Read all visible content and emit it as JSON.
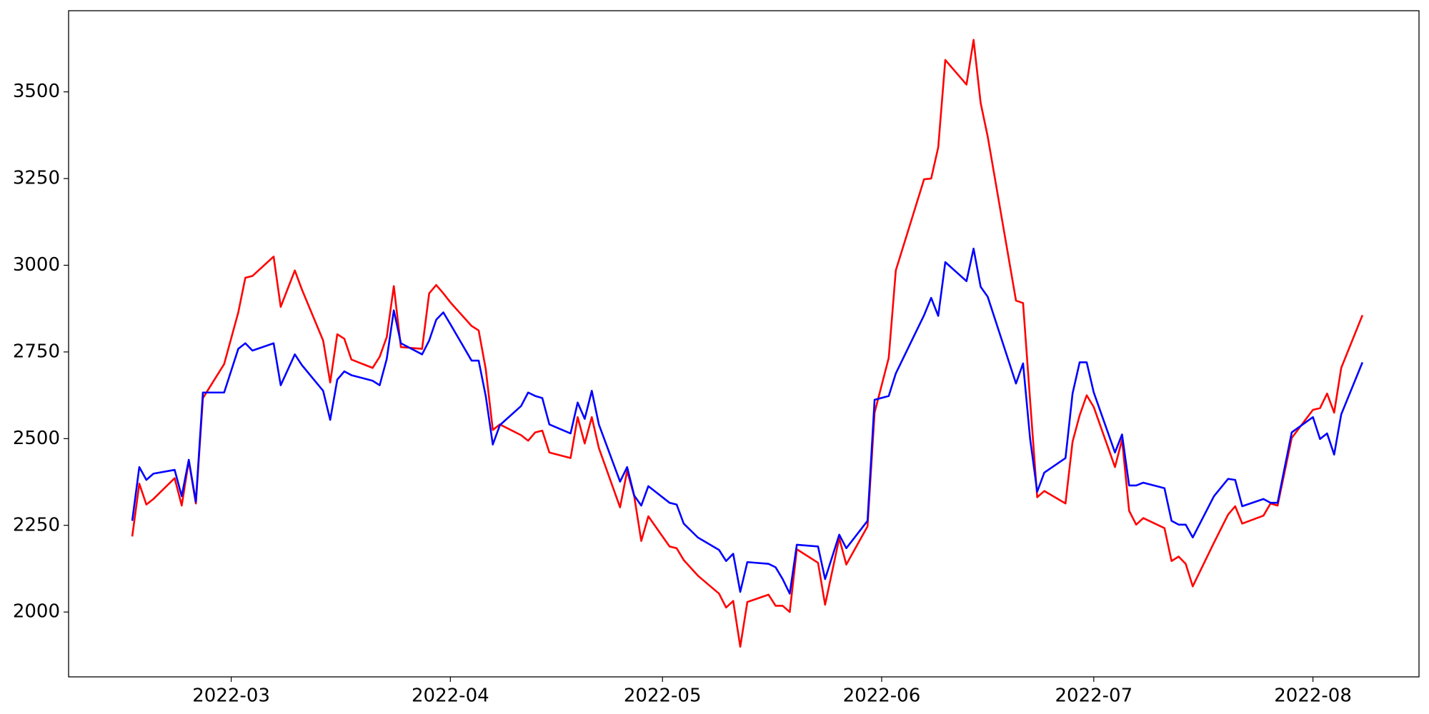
{
  "chart_data": {
    "type": "line",
    "x": [
      "2022-02-15",
      "2022-02-16",
      "2022-02-17",
      "2022-02-18",
      "2022-02-21",
      "2022-02-22",
      "2022-02-23",
      "2022-02-24",
      "2022-02-25",
      "2022-02-28",
      "2022-03-02",
      "2022-03-03",
      "2022-03-04",
      "2022-03-07",
      "2022-03-08",
      "2022-03-10",
      "2022-03-11",
      "2022-03-14",
      "2022-03-15",
      "2022-03-16",
      "2022-03-17",
      "2022-03-18",
      "2022-03-21",
      "2022-03-22",
      "2022-03-23",
      "2022-03-24",
      "2022-03-25",
      "2022-03-28",
      "2022-03-29",
      "2022-03-30",
      "2022-03-31",
      "2022-04-01",
      "2022-04-04",
      "2022-04-05",
      "2022-04-06",
      "2022-04-07",
      "2022-04-08",
      "2022-04-11",
      "2022-04-12",
      "2022-04-13",
      "2022-04-14",
      "2022-04-15",
      "2022-04-18",
      "2022-04-19",
      "2022-04-20",
      "2022-04-21",
      "2022-04-22",
      "2022-04-25",
      "2022-04-26",
      "2022-04-27",
      "2022-04-28",
      "2022-04-29",
      "2022-05-02",
      "2022-05-03",
      "2022-05-04",
      "2022-05-06",
      "2022-05-09",
      "2022-05-10",
      "2022-05-11",
      "2022-05-12",
      "2022-05-13",
      "2022-05-16",
      "2022-05-17",
      "2022-05-18",
      "2022-05-19",
      "2022-05-20",
      "2022-05-23",
      "2022-05-24",
      "2022-05-26",
      "2022-05-27",
      "2022-05-30",
      "2022-05-31",
      "2022-06-02",
      "2022-06-03",
      "2022-06-07",
      "2022-06-08",
      "2022-06-09",
      "2022-06-10",
      "2022-06-13",
      "2022-06-14",
      "2022-06-15",
      "2022-06-16",
      "2022-06-20",
      "2022-06-21",
      "2022-06-22",
      "2022-06-23",
      "2022-06-24",
      "2022-06-27",
      "2022-06-28",
      "2022-06-29",
      "2022-06-30",
      "2022-07-01",
      "2022-07-04",
      "2022-07-05",
      "2022-07-06",
      "2022-07-07",
      "2022-07-08",
      "2022-07-11",
      "2022-07-12",
      "2022-07-13",
      "2022-07-14",
      "2022-07-15",
      "2022-07-18",
      "2022-07-20",
      "2022-07-21",
      "2022-07-22",
      "2022-07-25",
      "2022-07-26",
      "2022-07-27",
      "2022-07-29",
      "2022-08-01",
      "2022-08-02",
      "2022-08-03",
      "2022-08-04",
      "2022-08-05",
      "2022-08-08"
    ],
    "series": [
      {
        "color": "#ff0000",
        "values": [
          2218,
          2370,
          2310,
          2326,
          2386,
          2307,
          2436,
          2313,
          2617,
          2715,
          2864,
          2964,
          2969,
          3025,
          2880,
          2985,
          2930,
          2783,
          2662,
          2801,
          2788,
          2728,
          2704,
          2736,
          2793,
          2940,
          2764,
          2759,
          2919,
          2943,
          2919,
          2893,
          2825,
          2812,
          2701,
          2525,
          2541,
          2510,
          2494,
          2518,
          2523,
          2460,
          2444,
          2562,
          2486,
          2562,
          2473,
          2302,
          2407,
          2334,
          2205,
          2276,
          2189,
          2184,
          2150,
          2105,
          2053,
          2013,
          2032,
          1900,
          2029,
          2050,
          2018,
          2018,
          2000,
          2181,
          2142,
          2021,
          2213,
          2137,
          2247,
          2575,
          2733,
          2985,
          3248,
          3250,
          3340,
          3592,
          3521,
          3650,
          3468,
          3371,
          2898,
          2891,
          2609,
          2331,
          2349,
          2313,
          2491,
          2567,
          2625,
          2591,
          2418,
          2497,
          2292,
          2252,
          2271,
          2242,
          2147,
          2160,
          2139,
          2074,
          2200,
          2281,
          2305,
          2255,
          2278,
          2313,
          2307,
          2502,
          2583,
          2588,
          2630,
          2575,
          2704,
          2856
        ]
      },
      {
        "color": "#0000ff",
        "values": [
          2263,
          2418,
          2381,
          2399,
          2410,
          2334,
          2439,
          2318,
          2633,
          2633,
          2759,
          2775,
          2754,
          2775,
          2654,
          2743,
          2712,
          2638,
          2554,
          2670,
          2694,
          2683,
          2667,
          2654,
          2730,
          2870,
          2775,
          2743,
          2783,
          2843,
          2864,
          2830,
          2725,
          2725,
          2623,
          2483,
          2539,
          2594,
          2633,
          2623,
          2617,
          2541,
          2515,
          2604,
          2557,
          2638,
          2541,
          2376,
          2418,
          2336,
          2307,
          2363,
          2315,
          2310,
          2255,
          2215,
          2179,
          2147,
          2168,
          2058,
          2144,
          2139,
          2129,
          2095,
          2053,
          2194,
          2189,
          2095,
          2223,
          2184,
          2263,
          2612,
          2623,
          2688,
          2856,
          2906,
          2854,
          3009,
          2954,
          3048,
          2938,
          2909,
          2659,
          2717,
          2499,
          2347,
          2402,
          2444,
          2630,
          2720,
          2720,
          2633,
          2460,
          2512,
          2365,
          2365,
          2373,
          2357,
          2263,
          2252,
          2252,
          2215,
          2334,
          2384,
          2381,
          2305,
          2326,
          2315,
          2315,
          2518,
          2562,
          2499,
          2515,
          2454,
          2570,
          2720
        ]
      }
    ],
    "xlim": [
      "2022-02-06",
      "2022-08-16"
    ],
    "xticks": [
      {
        "value": "2022-03-01",
        "label": "2022-03"
      },
      {
        "value": "2022-04-01",
        "label": "2022-04"
      },
      {
        "value": "2022-05-01",
        "label": "2022-05"
      },
      {
        "value": "2022-06-01",
        "label": "2022-06"
      },
      {
        "value": "2022-07-01",
        "label": "2022-07"
      },
      {
        "value": "2022-08-01",
        "label": "2022-08"
      }
    ],
    "ylim": [
      1813,
      3734
    ],
    "yticks": [
      2000,
      2250,
      2500,
      2750,
      3000,
      3250,
      3500
    ],
    "grid": false
  }
}
